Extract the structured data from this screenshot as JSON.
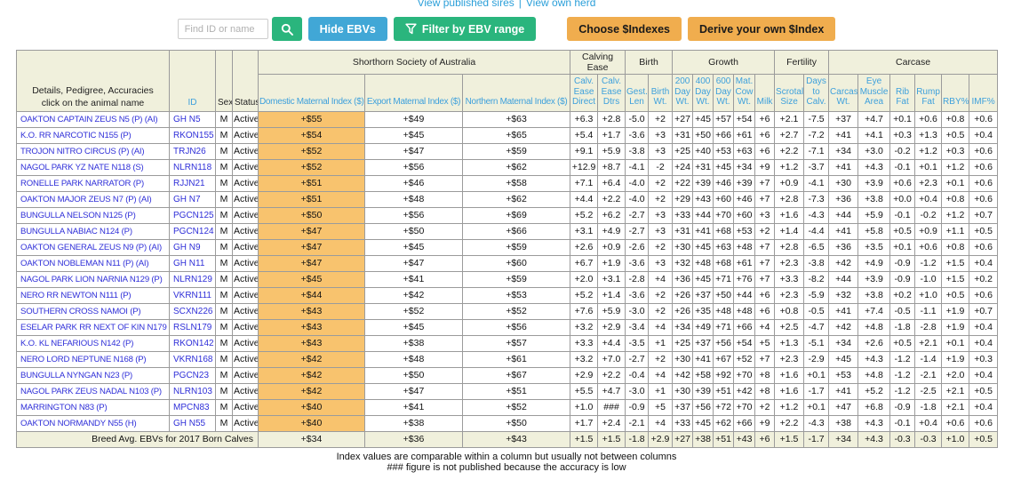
{
  "top_links": {
    "published": "View published sires",
    "separator": "|",
    "own_herd": "View own herd"
  },
  "toolbar": {
    "search_placeholder": "Find ID or name",
    "search_icon": "magnifier",
    "hide_ebvs_label": "Hide EBVs",
    "filter_icon": "funnel",
    "filter_label": "Filter by EBV range",
    "choose_indexes_label": "Choose $Indexes",
    "derive_index_label": "Derive your own $Index"
  },
  "colors": {
    "highlight_orange": "#f8c36e",
    "header_beige": "#f0f0dc",
    "button_blue": "#41a7d6",
    "button_green": "#2ab57d",
    "button_orange": "#f0ad4e",
    "row_link_blue": "#2f2fd8",
    "column_header_blue": "#3da0dc"
  },
  "table": {
    "left_headers": {
      "details_line1": "Details, Pedigree, Accuracies",
      "details_line2": "click on the animal name",
      "id": "ID",
      "sex": "Sex",
      "status": "Status"
    },
    "groups": [
      {
        "label": "Shorthorn Society of Australia",
        "span": 3
      },
      {
        "label": "Calving Ease",
        "span": 2
      },
      {
        "label": "Birth",
        "span": 2
      },
      {
        "label": "Growth",
        "span": 5
      },
      {
        "label": "Fertility",
        "span": 2
      },
      {
        "label": "Carcase",
        "span": 6
      }
    ],
    "columns": [
      "Domestic Maternal Index ($)",
      "Export Maternal Index ($)",
      "Northern Maternal Index ($)",
      "Calv. Ease Direct",
      "Calv. Ease Dtrs",
      "Gest. Len",
      "Birth Wt.",
      "200 Day Wt.",
      "400 Day Wt.",
      "600 Day Wt.",
      "Mat. Cow Wt.",
      "Milk",
      "Scrotal Size",
      "Days to Calv.",
      "Carcase Wt.",
      "Eye Muscle Area",
      "Rib Fat",
      "Rump Fat",
      "RBY%",
      "IMF%"
    ],
    "rows": [
      {
        "name": "OAKTON CAPTAIN ZEUS N5 (P) (AI)",
        "id": "GH N5",
        "sex": "M",
        "status": "Active",
        "indexes": [
          "+$55",
          "+$49",
          "+$63"
        ],
        "ebvs": [
          "+6.3",
          "+2.8",
          "-5.0",
          "+2",
          "+27",
          "+45",
          "+57",
          "+54",
          "+6",
          "+2.1",
          "-7.5",
          "+37",
          "+4.7",
          "+0.1",
          "+0.6",
          "+0.8",
          "+0.6"
        ]
      },
      {
        "name": "K.O. RR NARCOTIC N155 (P)",
        "id": "RKON155",
        "sex": "M",
        "status": "Active",
        "indexes": [
          "+$54",
          "+$45",
          "+$65"
        ],
        "ebvs": [
          "+5.4",
          "+1.7",
          "-3.6",
          "+3",
          "+31",
          "+50",
          "+66",
          "+61",
          "+6",
          "+2.7",
          "-7.2",
          "+41",
          "+4.1",
          "+0.3",
          "+1.3",
          "+0.5",
          "+0.4"
        ]
      },
      {
        "name": "TROJON NITRO CIRCUS (P) (AI)",
        "id": "TRJN26",
        "sex": "M",
        "status": "Active",
        "indexes": [
          "+$52",
          "+$47",
          "+$59"
        ],
        "ebvs": [
          "+9.1",
          "+5.9",
          "-3.8",
          "+3",
          "+25",
          "+40",
          "+53",
          "+63",
          "+6",
          "+2.2",
          "-7.1",
          "+34",
          "+3.0",
          "-0.2",
          "+1.2",
          "+0.3",
          "+0.6"
        ]
      },
      {
        "name": "NAGOL PARK YZ NATE N118 (S)",
        "id": "NLRN118",
        "sex": "M",
        "status": "Active",
        "indexes": [
          "+$52",
          "+$56",
          "+$62"
        ],
        "ebvs": [
          "+12.9",
          "+8.7",
          "-4.1",
          "-2",
          "+24",
          "+31",
          "+45",
          "+34",
          "+9",
          "+1.2",
          "-3.7",
          "+41",
          "+4.3",
          "-0.1",
          "+0.1",
          "+1.2",
          "+0.6"
        ]
      },
      {
        "name": "RONELLE PARK NARRATOR (P)",
        "id": "RJJN21",
        "sex": "M",
        "status": "Active",
        "indexes": [
          "+$51",
          "+$46",
          "+$58"
        ],
        "ebvs": [
          "+7.1",
          "+6.4",
          "-4.0",
          "+2",
          "+22",
          "+39",
          "+46",
          "+39",
          "+7",
          "+0.9",
          "-4.1",
          "+30",
          "+3.9",
          "+0.6",
          "+2.3",
          "+0.1",
          "+0.6"
        ]
      },
      {
        "name": "OAKTON MAJOR ZEUS N7 (P) (AI)",
        "id": "GH N7",
        "sex": "M",
        "status": "Active",
        "indexes": [
          "+$51",
          "+$48",
          "+$62"
        ],
        "ebvs": [
          "+4.4",
          "+2.2",
          "-4.0",
          "+2",
          "+29",
          "+43",
          "+60",
          "+46",
          "+7",
          "+2.8",
          "-7.3",
          "+36",
          "+3.8",
          "+0.0",
          "+0.4",
          "+0.8",
          "+0.6"
        ]
      },
      {
        "name": "BUNGULLA NELSON N125 (P)",
        "id": "PGCN125",
        "sex": "M",
        "status": "Active",
        "indexes": [
          "+$50",
          "+$56",
          "+$69"
        ],
        "ebvs": [
          "+5.2",
          "+6.2",
          "-2.7",
          "+3",
          "+33",
          "+44",
          "+70",
          "+60",
          "+3",
          "+1.6",
          "-4.3",
          "+44",
          "+5.9",
          "-0.1",
          "-0.2",
          "+1.2",
          "+0.7"
        ]
      },
      {
        "name": "BUNGULLA NABIAC N124 (P)",
        "id": "PGCN124",
        "sex": "M",
        "status": "Active",
        "indexes": [
          "+$47",
          "+$50",
          "+$66"
        ],
        "ebvs": [
          "+3.1",
          "+4.9",
          "-2.7",
          "+3",
          "+31",
          "+41",
          "+68",
          "+53",
          "+2",
          "+1.4",
          "-4.4",
          "+41",
          "+5.8",
          "+0.5",
          "+0.9",
          "+1.1",
          "+0.5"
        ]
      },
      {
        "name": "OAKTON GENERAL ZEUS N9 (P) (AI)",
        "id": "GH N9",
        "sex": "M",
        "status": "Active",
        "indexes": [
          "+$47",
          "+$45",
          "+$59"
        ],
        "ebvs": [
          "+2.6",
          "+0.9",
          "-2.6",
          "+2",
          "+30",
          "+45",
          "+63",
          "+48",
          "+7",
          "+2.8",
          "-6.5",
          "+36",
          "+3.5",
          "+0.1",
          "+0.6",
          "+0.8",
          "+0.6"
        ]
      },
      {
        "name": "OAKTON NOBLEMAN N11 (P) (AI)",
        "id": "GH N11",
        "sex": "M",
        "status": "Active",
        "indexes": [
          "+$47",
          "+$47",
          "+$60"
        ],
        "ebvs": [
          "+6.7",
          "+1.9",
          "-3.6",
          "+3",
          "+32",
          "+48",
          "+68",
          "+61",
          "+7",
          "+2.3",
          "-3.8",
          "+42",
          "+4.9",
          "-0.9",
          "-1.2",
          "+1.5",
          "+0.4"
        ]
      },
      {
        "name": "NAGOL PARK LION NARNIA N129 (P)",
        "id": "NLRN129",
        "sex": "M",
        "status": "Active",
        "indexes": [
          "+$45",
          "+$41",
          "+$59"
        ],
        "ebvs": [
          "+2.0",
          "+3.1",
          "-2.8",
          "+4",
          "+36",
          "+45",
          "+71",
          "+76",
          "+7",
          "+3.3",
          "-8.2",
          "+44",
          "+3.9",
          "-0.9",
          "-1.0",
          "+1.5",
          "+0.2"
        ]
      },
      {
        "name": "NERO RR NEWTON N111 (P)",
        "id": "VKRN111",
        "sex": "M",
        "status": "Active",
        "indexes": [
          "+$44",
          "+$42",
          "+$53"
        ],
        "ebvs": [
          "+5.2",
          "+1.4",
          "-3.6",
          "+2",
          "+26",
          "+37",
          "+50",
          "+44",
          "+6",
          "+2.3",
          "-5.9",
          "+32",
          "+3.8",
          "+0.2",
          "+1.0",
          "+0.5",
          "+0.6"
        ]
      },
      {
        "name": "SOUTHERN CROSS NAMOI (P)",
        "id": "SCXN226",
        "sex": "M",
        "status": "Active",
        "indexes": [
          "+$43",
          "+$52",
          "+$52"
        ],
        "ebvs": [
          "+7.6",
          "+5.9",
          "-3.0",
          "+2",
          "+26",
          "+35",
          "+48",
          "+48",
          "+6",
          "+0.8",
          "-0.5",
          "+41",
          "+7.4",
          "-0.5",
          "-1.1",
          "+1.9",
          "+0.7"
        ]
      },
      {
        "name": "ESELAR PARK RR NEXT OF KIN N179 (P)",
        "id": "RSLN179",
        "sex": "M",
        "status": "Active",
        "indexes": [
          "+$43",
          "+$45",
          "+$56"
        ],
        "ebvs": [
          "+3.2",
          "+2.9",
          "-3.4",
          "+4",
          "+34",
          "+49",
          "+71",
          "+66",
          "+4",
          "+2.5",
          "-4.7",
          "+42",
          "+4.8",
          "-1.8",
          "-2.8",
          "+1.9",
          "+0.4"
        ]
      },
      {
        "name": "K.O. KL NEFARIOUS N142 (P)",
        "id": "RKON142",
        "sex": "M",
        "status": "Active",
        "indexes": [
          "+$43",
          "+$38",
          "+$57"
        ],
        "ebvs": [
          "+3.3",
          "+4.4",
          "-3.5",
          "+1",
          "+25",
          "+37",
          "+56",
          "+54",
          "+5",
          "+1.3",
          "-5.1",
          "+34",
          "+2.6",
          "+0.5",
          "+2.1",
          "+0.1",
          "+0.4"
        ]
      },
      {
        "name": "NERO LORD NEPTUNE N168 (P)",
        "id": "VKRN168",
        "sex": "M",
        "status": "Active",
        "indexes": [
          "+$42",
          "+$48",
          "+$61"
        ],
        "ebvs": [
          "+3.2",
          "+7.0",
          "-2.7",
          "+2",
          "+30",
          "+41",
          "+67",
          "+52",
          "+7",
          "+2.3",
          "-2.9",
          "+45",
          "+4.3",
          "-1.2",
          "-1.4",
          "+1.9",
          "+0.3"
        ]
      },
      {
        "name": "BUNGULLA NYNGAN N23 (P)",
        "id": "PGCN23",
        "sex": "M",
        "status": "Active",
        "indexes": [
          "+$42",
          "+$50",
          "+$67"
        ],
        "ebvs": [
          "+2.9",
          "+2.2",
          "-0.4",
          "+4",
          "+42",
          "+58",
          "+92",
          "+70",
          "+8",
          "+1.6",
          "+0.1",
          "+53",
          "+4.8",
          "-1.2",
          "-2.1",
          "+2.0",
          "+0.4"
        ]
      },
      {
        "name": "NAGOL PARK ZEUS NADAL N103 (P)",
        "id": "NLRN103",
        "sex": "M",
        "status": "Active",
        "indexes": [
          "+$42",
          "+$47",
          "+$51"
        ],
        "ebvs": [
          "+5.5",
          "+4.7",
          "-3.0",
          "+1",
          "+30",
          "+39",
          "+51",
          "+42",
          "+8",
          "+1.6",
          "-1.7",
          "+41",
          "+5.2",
          "-1.2",
          "-2.5",
          "+2.1",
          "+0.5"
        ]
      },
      {
        "name": "MARRINGTON N83 (P)",
        "id": "MPCN83",
        "sex": "M",
        "status": "Active",
        "indexes": [
          "+$40",
          "+$41",
          "+$52"
        ],
        "ebvs": [
          "+1.0",
          "###",
          "-0.9",
          "+5",
          "+37",
          "+56",
          "+72",
          "+70",
          "+2",
          "+1.2",
          "+0.1",
          "+47",
          "+6.8",
          "-0.9",
          "-1.8",
          "+2.1",
          "+0.4"
        ]
      },
      {
        "name": "OAKTON NORMANDY N55 (H)",
        "id": "GH N55",
        "sex": "M",
        "status": "Active",
        "indexes": [
          "+$40",
          "+$38",
          "+$50"
        ],
        "ebvs": [
          "+1.7",
          "+2.4",
          "-2.1",
          "+4",
          "+33",
          "+45",
          "+62",
          "+66",
          "+9",
          "+2.2",
          "-4.3",
          "+38",
          "+4.3",
          "-0.1",
          "+0.4",
          "+0.6",
          "+0.6"
        ]
      }
    ],
    "footer": {
      "label": "Breed Avg. EBVs for 2017 Born Calves",
      "indexes": [
        "+$34",
        "+$36",
        "+$43"
      ],
      "ebvs": [
        "+1.5",
        "+1.5",
        "-1.8",
        "+2.9",
        "+27",
        "+38",
        "+51",
        "+43",
        "+6",
        "+1.5",
        "-1.7",
        "+34",
        "+4.3",
        "-0.3",
        "-0.3",
        "+1.0",
        "+0.5"
      ]
    }
  },
  "notes": [
    "Index values are comparable within a column but usually not between columns",
    "### figure is not published because the accuracy is low"
  ]
}
